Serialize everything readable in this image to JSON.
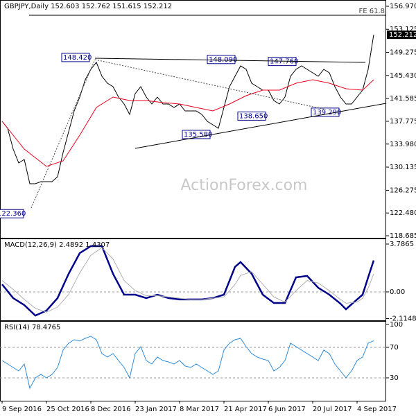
{
  "chart_data": [
    {
      "type": "line",
      "title": "GBPJPY,Daily  152.603 152.762 151.615 152.212",
      "watermark": "ActionForex.com",
      "xlim": [
        -1.5,
        277
      ],
      "ylim": [
        118.34,
        158.01
      ],
      "yticks": [
        {
          "value": 156.97,
          "label": "156.970"
        },
        153.125,
        149.275,
        {
          "value": 145.43,
          "label": "145.430"
        },
        141.585,
        137.775,
        {
          "value": 133.98,
          "label": "133.980"
        },
        130.135,
        126.275,
        {
          "value": 122.48,
          "label": "122.480"
        },
        118.685
      ],
      "series": [
        {
          "color": "#000000",
          "x": [
            0,
            4,
            8,
            12,
            16,
            20,
            24,
            28,
            32,
            36,
            40,
            44,
            48,
            52,
            56,
            60,
            64,
            68,
            72,
            76,
            80,
            84,
            88,
            92,
            96,
            100,
            104,
            108,
            112,
            116,
            120,
            124,
            128,
            132,
            136,
            140,
            144,
            148,
            152,
            156,
            160,
            164,
            168,
            172,
            176,
            180,
            184,
            188,
            192,
            196,
            200,
            204,
            208,
            212,
            216,
            220,
            224,
            228,
            232,
            236,
            240,
            244,
            248,
            252,
            256,
            260,
            264,
            268
          ],
          "values": [
            137.77,
            136.61,
            133.14,
            130.83,
            131.41,
            127.36,
            127.36,
            127.71,
            127.71,
            127.71,
            128.52,
            132.57,
            136.04,
            139.51,
            141.82,
            144.71,
            146.45,
            147.61,
            145.29,
            144.13,
            143.55,
            141.82,
            140.66,
            138.93,
            142.4,
            143.55,
            141.82,
            140.66,
            141.82,
            140.66,
            140.66,
            140.08,
            140.66,
            139.51,
            139.51,
            139.51,
            138.93,
            137.77,
            137.19,
            136.61,
            140.08,
            143.55,
            145.29,
            147.02,
            146.45,
            144.13,
            143.55,
            142.97,
            142.97,
            141.24,
            140.66,
            141.82,
            145.29,
            146.45,
            147.02,
            146.45,
            145.87,
            145.29,
            146.45,
            145.87,
            143.55,
            141.82,
            140.66,
            140.66,
            141.82,
            142.97,
            146.45,
            152.212
          ]
        },
        {
          "color": "#e8001c",
          "x": [
            0,
            16,
            32,
            44,
            56,
            68,
            80,
            92,
            104,
            116,
            128,
            140,
            152,
            164,
            176,
            188,
            200,
            212,
            224,
            236,
            248,
            260,
            268
          ],
          "values": [
            137.77,
            133.14,
            130.25,
            131.18,
            135.46,
            140.08,
            141.82,
            141.24,
            141.24,
            140.89,
            140.66,
            140.08,
            139.51,
            140.66,
            142.05,
            142.97,
            142.97,
            144.13,
            144.71,
            144.13,
            143.21,
            142.97,
            144.71
          ]
        }
      ],
      "fe_level": {
        "label": "FE 61.8",
        "value": 155.47
      },
      "annotations": [
        {
          "x": 43,
          "value": 148.42,
          "label": "148.420"
        },
        {
          "x": 148,
          "value": 148.09,
          "label": "148.090"
        },
        {
          "x": 192,
          "value": 147.76,
          "label": "147.760"
        },
        {
          "x": 170,
          "value": 138.65,
          "label": "138.650"
        },
        {
          "x": 130,
          "value": 135.58,
          "label": "135.580"
        },
        {
          "x": 223,
          "value": 139.29,
          "label": "139.290"
        },
        {
          "x": -4.5,
          "value": 122.36,
          "label": "122.360"
        }
      ]
    },
    {
      "type": "line",
      "title": "MACD(12,26,9) 2.4892 1.4307",
      "xlim": [
        -1.5,
        277
      ],
      "ylim": [
        -2.25,
        4.226
      ],
      "yticks": [
        3.7865,
        {
          "value": 0,
          "label": "0.00"
        },
        -2.1148
      ],
      "levels": [
        0
      ],
      "series": [
        {
          "color": "#00008b",
          "x": [
            0,
            8,
            16,
            24,
            32,
            40,
            48,
            56,
            64,
            72,
            80,
            88,
            96,
            104,
            112,
            120,
            128,
            136,
            144,
            152,
            160,
            168,
            172,
            180,
            188,
            196,
            204,
            212,
            220,
            228,
            236,
            244,
            248,
            256,
            260,
            264,
            268
          ],
          "values": [
            0.6,
            -0.49,
            -1.04,
            -1.87,
            -1.48,
            -0.49,
            1.43,
            3.07,
            3.62,
            3.62,
            1.43,
            -0.22,
            -0.22,
            -0.49,
            -0.22,
            -0.49,
            -0.6,
            -0.6,
            -0.6,
            -0.49,
            -0.22,
            1.98,
            2.36,
            1.43,
            -0.22,
            -0.88,
            -0.88,
            1.15,
            1.26,
            0.33,
            -0.22,
            -0.93,
            -1.37,
            -0.6,
            -0.22,
            1.15,
            2.4892
          ]
        },
        {
          "color": "#b0b0b0",
          "x": [
            0,
            8,
            16,
            24,
            32,
            40,
            48,
            56,
            64,
            72,
            80,
            88,
            96,
            104,
            112,
            120,
            128,
            136,
            144,
            152,
            160,
            168,
            172,
            180,
            188,
            196,
            204,
            212,
            220,
            228,
            236,
            244,
            248,
            256,
            260,
            264,
            268
          ],
          "values": [
            0.9,
            0.2,
            -0.6,
            -1.3,
            -1.6,
            -1.2,
            -0.2,
            1.5,
            2.9,
            3.5,
            2.6,
            0.9,
            0.1,
            -0.3,
            -0.3,
            -0.4,
            -0.5,
            -0.6,
            -0.6,
            -0.5,
            -0.4,
            0.6,
            1.3,
            1.6,
            0.6,
            -0.4,
            -0.8,
            0.1,
            0.9,
            0.7,
            0.1,
            -0.6,
            -0.9,
            -0.8,
            -0.5,
            0.3,
            1.4307
          ]
        }
      ]
    },
    {
      "type": "line",
      "title": "RSI(14) 78.4765",
      "xlim": [
        -1.5,
        277
      ],
      "ylim": [
        0,
        104.5
      ],
      "yticks": [
        100,
        70,
        30
      ],
      "levels": [
        70,
        30
      ],
      "xticks": [
        {
          "value": 0,
          "label": "9 Sep 2016"
        },
        {
          "value": 32,
          "label": "25 Oct 2016"
        },
        {
          "value": 64,
          "label": "8 Dec 2016"
        },
        {
          "value": 96,
          "label": "23 Jan 2017"
        },
        {
          "value": 128,
          "label": "8 Mar 2017"
        },
        {
          "value": 160,
          "label": "21 Apr 2017"
        },
        {
          "value": 192,
          "label": "6 Jun 2017"
        },
        {
          "value": 224,
          "label": "20 Jul 2017"
        },
        {
          "value": 256,
          "label": "4 Sep 2017"
        }
      ],
      "series": [
        {
          "color": "#2e8bd6",
          "x": [
            0,
            4,
            8,
            12,
            16,
            20,
            24,
            28,
            32,
            36,
            40,
            44,
            48,
            52,
            56,
            60,
            64,
            68,
            72,
            76,
            80,
            84,
            88,
            92,
            96,
            100,
            104,
            108,
            112,
            116,
            120,
            124,
            128,
            132,
            136,
            140,
            144,
            148,
            152,
            156,
            160,
            164,
            168,
            172,
            176,
            180,
            184,
            188,
            192,
            196,
            200,
            204,
            208,
            212,
            216,
            220,
            224,
            228,
            232,
            236,
            240,
            244,
            248,
            252,
            256,
            260,
            264,
            268
          ],
          "values": [
            52.7,
            48.2,
            43.6,
            39.1,
            48.2,
            16.4,
            30,
            34.5,
            30,
            34.5,
            43.6,
            66.4,
            75.5,
            80,
            78.2,
            81.8,
            84.5,
            80,
            61.8,
            57.3,
            61.8,
            52.7,
            43.6,
            30,
            61.8,
            70.9,
            52.7,
            48.2,
            57.3,
            52.7,
            50.9,
            48.2,
            52.7,
            45.5,
            43.6,
            48.2,
            43.6,
            39.1,
            34.5,
            39.1,
            66.4,
            75.5,
            80,
            81.8,
            70.9,
            61.8,
            57.3,
            54.5,
            52.7,
            39.1,
            43.6,
            52.7,
            75.5,
            70.9,
            66.4,
            61.8,
            57.3,
            52.7,
            66.4,
            61.8,
            48.2,
            39.1,
            30,
            39.1,
            52.7,
            57.3,
            75.5,
            78.4765
          ]
        }
      ]
    }
  ]
}
